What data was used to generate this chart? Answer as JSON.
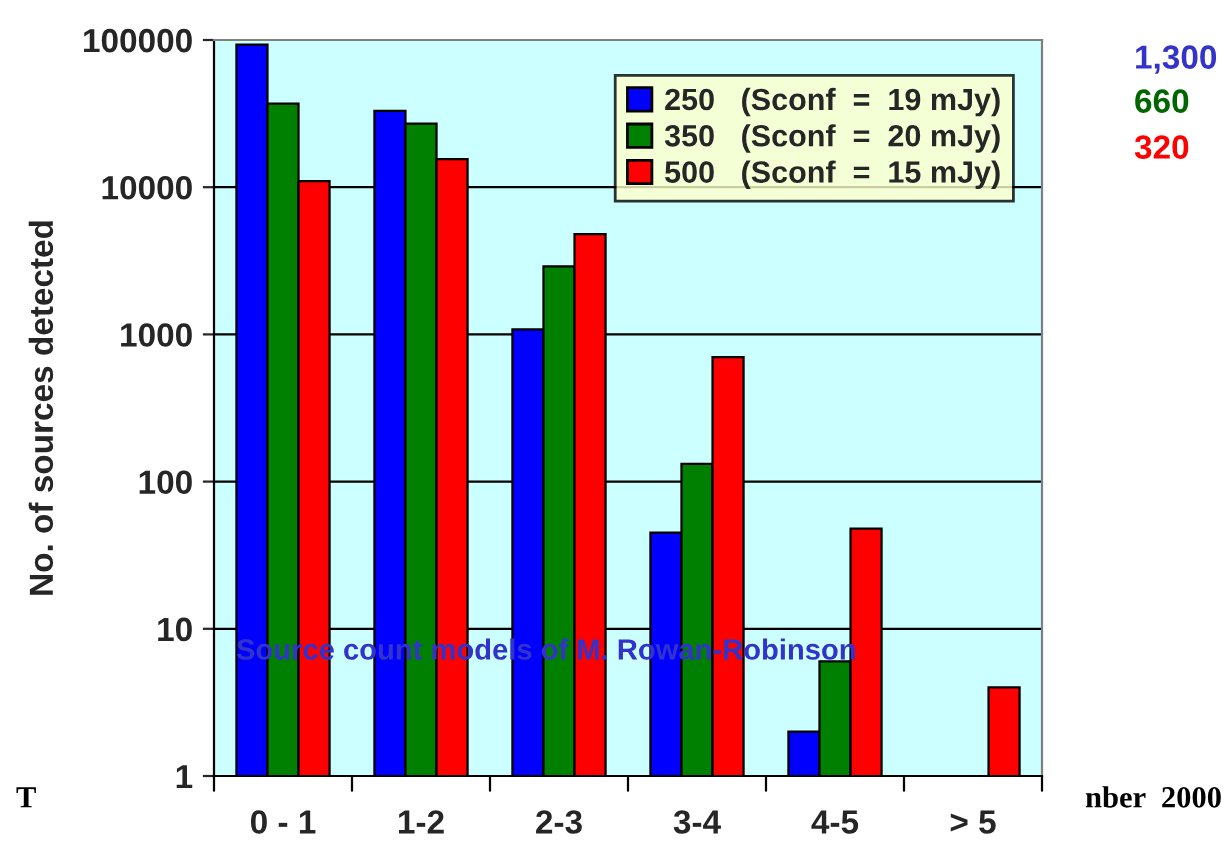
{
  "chart_data": {
    "type": "bar",
    "ylabel": "No. of sources detected",
    "categories": [
      "0 - 1",
      "1-2",
      "2-3",
      "3-4",
      "4-5",
      "> 5"
    ],
    "series": [
      {
        "name": "250   (Sconf  =  19 mJy)",
        "color": "#0000ff",
        "values": [
          93000,
          33000,
          1080,
          45,
          2,
          null
        ]
      },
      {
        "name": "350   (Sconf  =  20 mJy)",
        "color": "#008000",
        "values": [
          37000,
          27000,
          2900,
          132,
          6,
          null
        ]
      },
      {
        "name": "500   (Sconf  =  15 mJy)",
        "color": "#ff0000",
        "values": [
          11000,
          15500,
          4800,
          700,
          48,
          4
        ]
      }
    ],
    "log": "y",
    "ylim": [
      1,
      100000
    ],
    "yticks": [
      1,
      10,
      100,
      1000,
      10000,
      100000
    ],
    "grid": "y",
    "legend": "top right",
    "annotations": [
      "Source count models of M. Rowan-Robinson",
      "1,300",
      "660",
      "320",
      "T",
      "nber  2000"
    ]
  }
}
